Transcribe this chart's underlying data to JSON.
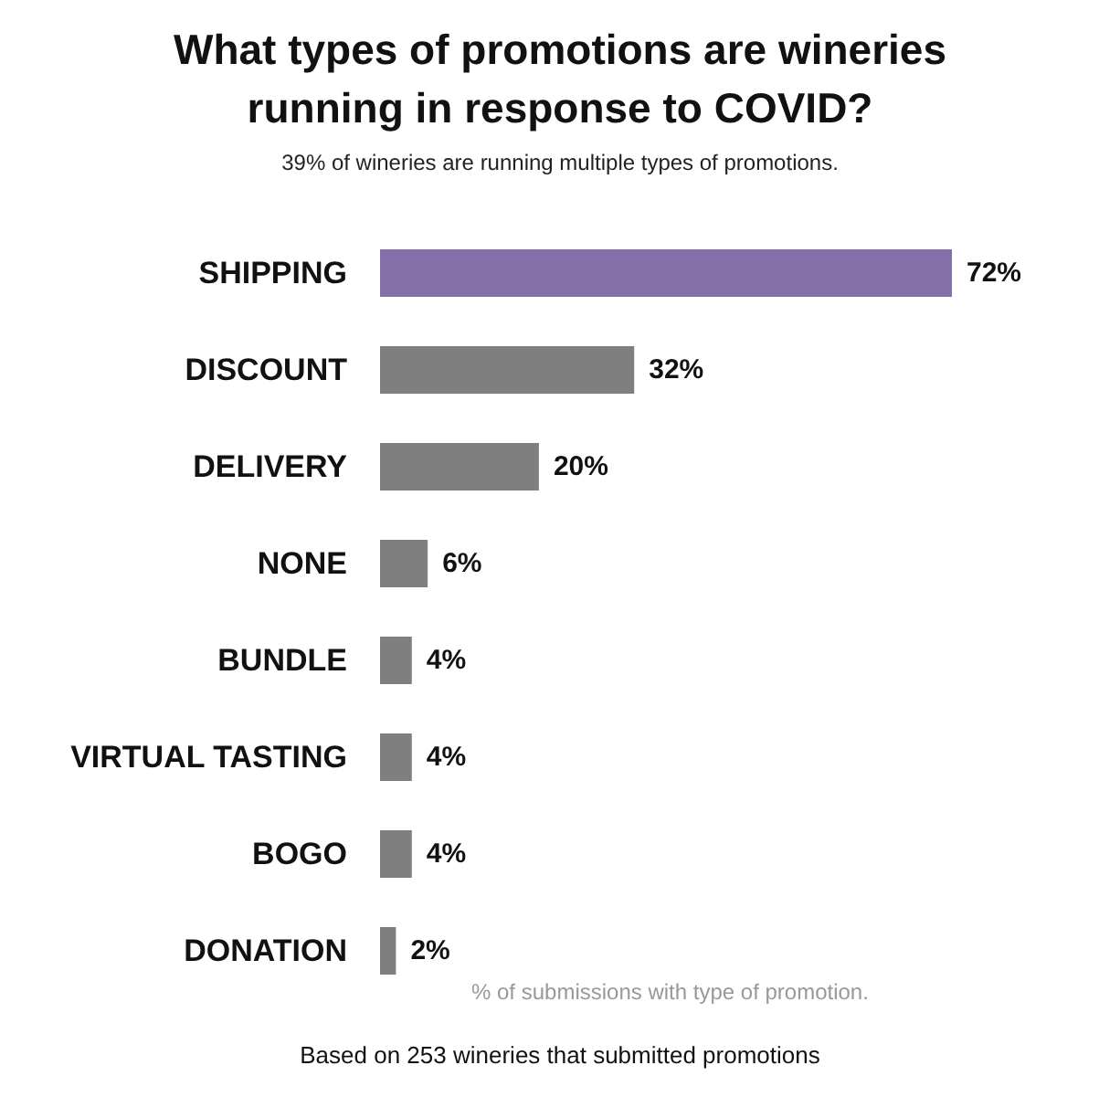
{
  "chart_data": {
    "type": "bar",
    "orientation": "horizontal",
    "title": "What types of promotions are wineries\nrunning in response to COVID?",
    "subtitle": "39% of wineries are running multiple types of promotions.",
    "categories": [
      "SHIPPING",
      "DISCOUNT",
      "DELIVERY",
      "NONE",
      "BUNDLE",
      "VIRTUAL TASTING",
      "BOGO",
      "DONATION"
    ],
    "values": [
      72,
      32,
      20,
      6,
      4,
      4,
      4,
      2
    ],
    "colors": [
      "#8470a8",
      "#7f7f7f",
      "#7f7f7f",
      "#7f7f7f",
      "#7f7f7f",
      "#7f7f7f",
      "#7f7f7f",
      "#7f7f7f"
    ],
    "value_labels": [
      "72%",
      "32%",
      "20%",
      "6%",
      "4%",
      "4%",
      "4%",
      "2%"
    ],
    "annotations": [
      "% of submissions with type of promotion.",
      "Based on 253 wineries that submitted promotions"
    ]
  }
}
